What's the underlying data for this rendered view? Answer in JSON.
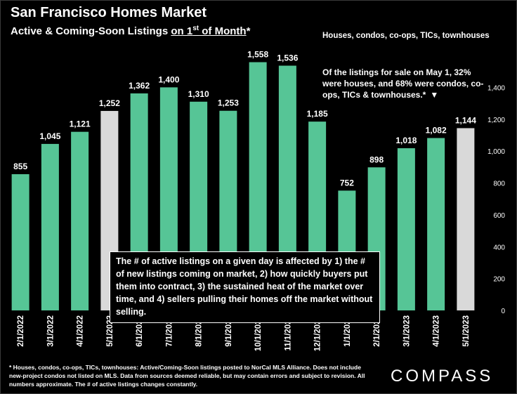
{
  "header": {
    "title": "San Francisco Homes Market",
    "subtitle_pre": "Active & Coming-Soon Listings ",
    "subtitle_underlined_pre": "on 1",
    "subtitle_sup": "st",
    "subtitle_underlined_post": " of Month",
    "subtitle_post": "*",
    "scope": "Houses, condos, co-ops, TICs, townhouses"
  },
  "note_top": {
    "text": "Of the listings for sale on May 1, 32% were houses, and 68% were condos, co-ops, TICs & townhouses.*",
    "arrow": "▼"
  },
  "callout": "The # of active listings on a given day is affected by 1) the # of new listings coming on market, 2) how quickly buyers put them into contract, 3) the sustained heat of the market over time, and 4) sellers pulling their homes off the market without selling.",
  "footnote": "* Houses, condos, co-ops, TICs, townhouses: Active/Coming-Soon listings posted to NorCal MLS Alliance. Does not include new-project condos not listed on MLS. Data from sources deemed reliable, but may contain errors and subject to revision. All numbers approximate. The # of active listings changes constantly.",
  "brand": "COMPASS",
  "colors": {
    "bar": "#56c596",
    "highlight": "#d9d9d9",
    "background": "#000000",
    "text": "#ffffff"
  },
  "chart_data": {
    "type": "bar",
    "categories": [
      "2/1/2022",
      "3/1/2022",
      "4/1/2022",
      "5/1/2022",
      "6/1/2022",
      "7/1/2022",
      "8/1/2022",
      "9/1/2022",
      "10/1/2022",
      "11/1/2022",
      "12/1/2022",
      "1/1/2023",
      "2/1/2023",
      "3/1/2023",
      "4/1/2023",
      "5/1/2023"
    ],
    "values": [
      855,
      1045,
      1121,
      1252,
      1362,
      1400,
      1310,
      1253,
      1558,
      1536,
      1185,
      752,
      898,
      1018,
      1082,
      1144
    ],
    "value_labels": [
      "855",
      "1,045",
      "1,121",
      "1,252",
      "1,362",
      "1,400",
      "1,310",
      "1,253",
      "1,558",
      "1,536",
      "1,185",
      "752",
      "898",
      "1,018",
      "1,082",
      "1,144"
    ],
    "highlighted": [
      "5/1/2022",
      "5/1/2023"
    ],
    "ylim": [
      0,
      1600
    ],
    "yticks": [
      0,
      200,
      400,
      600,
      800,
      1000,
      1200,
      1400
    ],
    "ytick_labels": [
      "0",
      "200",
      "400",
      "600",
      "800",
      "1,000",
      "1,200",
      "1,400"
    ],
    "y_axis_side": "right",
    "grid": false
  }
}
